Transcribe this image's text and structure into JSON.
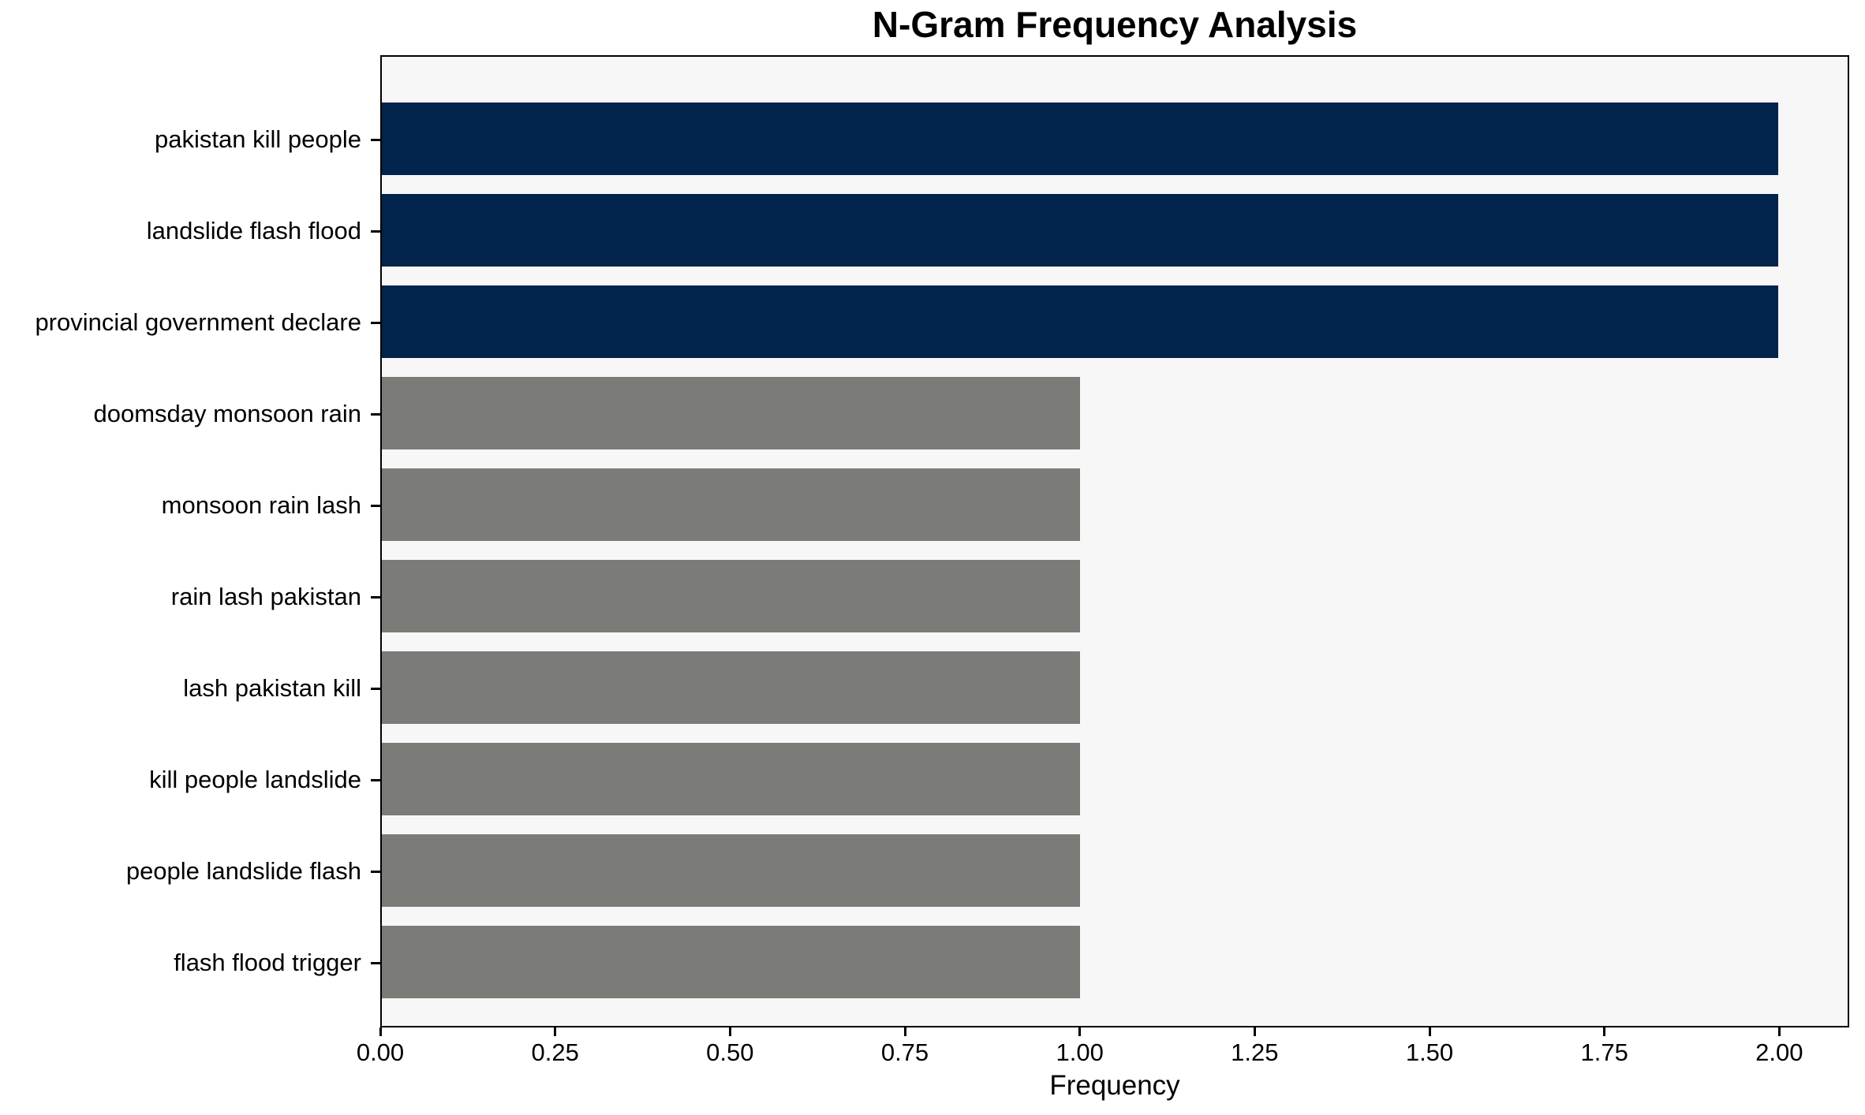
{
  "title": "N-Gram Frequency Analysis",
  "colors": {
    "figure_bg": "#ffffff",
    "plot_bg": "#f7f7f7",
    "spine": "#000000",
    "text": "#000000",
    "highlight_bar": "#02234c",
    "default_bar": "#7b7b78"
  },
  "chart_data": {
    "type": "bar",
    "orientation": "horizontal",
    "title": "N-Gram Frequency Analysis",
    "xlabel": "Frequency",
    "ylabel": "",
    "categories": [
      "pakistan kill people",
      "landslide flash flood",
      "provincial government declare",
      "doomsday monsoon rain",
      "monsoon rain lash",
      "rain lash pakistan",
      "lash pakistan kill",
      "kill people landslide",
      "people landslide flash",
      "flash flood trigger"
    ],
    "values": [
      2,
      2,
      2,
      1,
      1,
      1,
      1,
      1,
      1,
      1
    ],
    "bar_colors": [
      "#02234c",
      "#02234c",
      "#02234c",
      "#7b7b78",
      "#7b7b78",
      "#7b7b78",
      "#7b7b78",
      "#7b7b78",
      "#7b7b78",
      "#7b7b78"
    ],
    "xlim": [
      0,
      2.1
    ],
    "xtick_values": [
      0,
      0.25,
      0.5,
      0.75,
      1.0,
      1.25,
      1.5,
      1.75,
      2.0
    ],
    "xtick_labels": [
      "0.00",
      "0.25",
      "0.50",
      "0.75",
      "1.00",
      "1.25",
      "1.50",
      "1.75",
      "2.00"
    ],
    "grid": false,
    "legend": null
  }
}
